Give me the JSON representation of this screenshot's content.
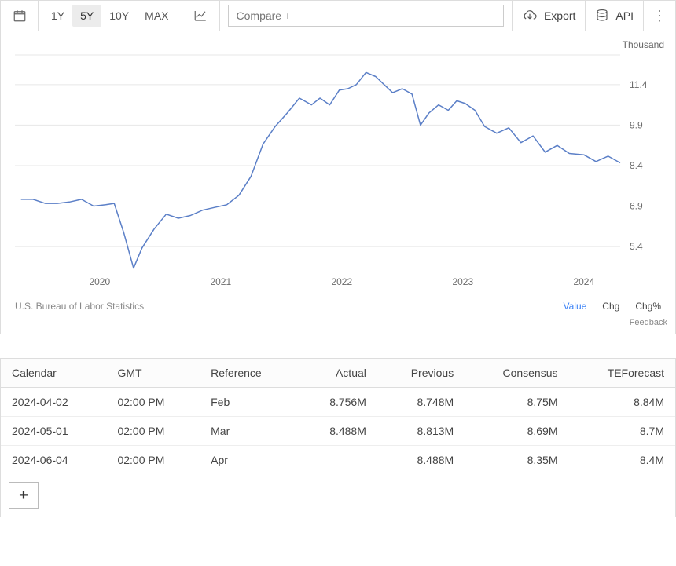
{
  "toolbar": {
    "ranges": [
      "1Y",
      "5Y",
      "10Y",
      "MAX"
    ],
    "active_range_index": 1,
    "compare_placeholder": "Compare +",
    "export_label": "Export",
    "api_label": "API"
  },
  "chart": {
    "type": "line",
    "unit_label": "Thousand",
    "source": "U.S. Bureau of Labor Statistics",
    "metrics": [
      "Value",
      "Chg",
      "Chg%"
    ],
    "active_metric_index": 0,
    "feedback_label": "Feedback",
    "line_color": "#5b7fc7",
    "grid_color": "#e7e7e7",
    "axis_text_color": "#6b6b6b",
    "background_color": "#ffffff",
    "line_width": 1.5,
    "x_axis": {
      "min": 2019.3,
      "max": 2024.3,
      "ticks": [
        2020,
        2021,
        2022,
        2023,
        2024
      ]
    },
    "y_axis": {
      "min": 4.5,
      "max": 12.5,
      "ticks": [
        5.4,
        6.9,
        8.4,
        9.9,
        11.4
      ],
      "tick_labels": [
        "5.4",
        "6.9",
        "8.4",
        "9.9",
        "11.4"
      ]
    },
    "series": [
      {
        "name": "value",
        "points": [
          [
            2019.35,
            7.15
          ],
          [
            2019.45,
            7.15
          ],
          [
            2019.55,
            7.0
          ],
          [
            2019.65,
            7.0
          ],
          [
            2019.75,
            7.05
          ],
          [
            2019.85,
            7.15
          ],
          [
            2019.95,
            6.9
          ],
          [
            2020.05,
            6.95
          ],
          [
            2020.12,
            7.0
          ],
          [
            2020.2,
            5.9
          ],
          [
            2020.28,
            4.6
          ],
          [
            2020.35,
            5.35
          ],
          [
            2020.45,
            6.05
          ],
          [
            2020.55,
            6.6
          ],
          [
            2020.65,
            6.45
          ],
          [
            2020.75,
            6.55
          ],
          [
            2020.85,
            6.75
          ],
          [
            2020.95,
            6.85
          ],
          [
            2021.05,
            6.95
          ],
          [
            2021.15,
            7.3
          ],
          [
            2021.25,
            8.0
          ],
          [
            2021.35,
            9.2
          ],
          [
            2021.45,
            9.85
          ],
          [
            2021.55,
            10.35
          ],
          [
            2021.65,
            10.9
          ],
          [
            2021.75,
            10.65
          ],
          [
            2021.82,
            10.9
          ],
          [
            2021.9,
            10.65
          ],
          [
            2021.98,
            11.2
          ],
          [
            2022.05,
            11.25
          ],
          [
            2022.12,
            11.4
          ],
          [
            2022.2,
            11.85
          ],
          [
            2022.28,
            11.7
          ],
          [
            2022.35,
            11.4
          ],
          [
            2022.42,
            11.1
          ],
          [
            2022.5,
            11.25
          ],
          [
            2022.58,
            11.05
          ],
          [
            2022.65,
            9.9
          ],
          [
            2022.72,
            10.35
          ],
          [
            2022.8,
            10.65
          ],
          [
            2022.88,
            10.45
          ],
          [
            2022.95,
            10.8
          ],
          [
            2023.02,
            10.7
          ],
          [
            2023.1,
            10.45
          ],
          [
            2023.18,
            9.85
          ],
          [
            2023.28,
            9.6
          ],
          [
            2023.38,
            9.8
          ],
          [
            2023.48,
            9.25
          ],
          [
            2023.58,
            9.5
          ],
          [
            2023.68,
            8.9
          ],
          [
            2023.78,
            9.15
          ],
          [
            2023.88,
            8.85
          ],
          [
            2024.0,
            8.8
          ],
          [
            2024.1,
            8.55
          ],
          [
            2024.2,
            8.75
          ],
          [
            2024.3,
            8.5
          ]
        ]
      }
    ]
  },
  "table": {
    "columns": [
      "Calendar",
      "GMT",
      "Reference",
      "Actual",
      "Previous",
      "Consensus",
      "TEForecast"
    ],
    "alignments": [
      "left",
      "left",
      "left",
      "right",
      "right",
      "right",
      "right"
    ],
    "rows": [
      [
        "2024-04-02",
        "02:00 PM",
        "Feb",
        "8.756M",
        "8.748M",
        "8.75M",
        "8.84M"
      ],
      [
        "2024-05-01",
        "02:00 PM",
        "Mar",
        "8.488M",
        "8.813M",
        "8.69M",
        "8.7M"
      ],
      [
        "2024-06-04",
        "02:00 PM",
        "Apr",
        "",
        "8.488M",
        "8.35M",
        "8.4M"
      ]
    ],
    "add_row_label": "+"
  }
}
